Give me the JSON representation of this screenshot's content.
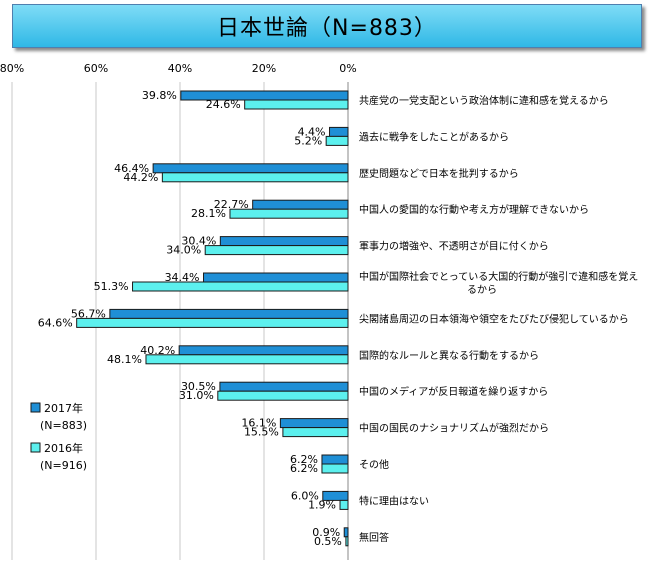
{
  "chart_data": {
    "type": "bar",
    "title": "日本世論（N=883）",
    "orientation": "horizontal",
    "direction": "right-to-left",
    "xlim": [
      0,
      80
    ],
    "ticks": [
      "80%",
      "60%",
      "40%",
      "20%",
      "0%"
    ],
    "categories": [
      [
        "共産党の一党支配という政治体制に違和感を覚えるから"
      ],
      [
        "過去に戦争をしたことがあるから"
      ],
      [
        "歴史問題などで日本を批判するから"
      ],
      [
        "中国人の愛国的な行動や考え方が理解できないから"
      ],
      [
        "軍事力の増強や、不透明さが目に付くから"
      ],
      [
        "中国が国際社会でとっている大国的行動が強引で違和感を覚え",
        "るから"
      ],
      [
        "尖閣諸島周辺の日本領海や領空をたびたび侵犯しているから"
      ],
      [
        "国際的なルールと異なる行動をするから"
      ],
      [
        "中国のメディアが反日報道を繰り返すから"
      ],
      [
        "中国の国民のナショナリズムが強烈だから"
      ],
      [
        "その他"
      ],
      [
        "特に理由はない"
      ],
      [
        "無回答"
      ]
    ],
    "series": [
      {
        "name": "2017年 (N=883)",
        "legend_lines": [
          "2017年",
          "(N=883)"
        ],
        "color": "#1f8fd6",
        "values": [
          39.8,
          4.4,
          46.4,
          22.7,
          30.4,
          34.4,
          56.7,
          40.2,
          30.5,
          16.1,
          6.2,
          6.0,
          0.9
        ],
        "labels": [
          "39.8%",
          "4.4%",
          "46.4%",
          "22.7%",
          "30.4%",
          "34.4%",
          "56.7%",
          "40.2%",
          "30.5%",
          "16.1%",
          "6.2%",
          "6.0%",
          "0.9%"
        ]
      },
      {
        "name": "2016年 (N=916)",
        "legend_lines": [
          "2016年",
          "(N=916)"
        ],
        "color": "#5cf0ee",
        "values": [
          24.6,
          5.2,
          44.2,
          28.1,
          34.0,
          51.3,
          64.6,
          48.1,
          31.0,
          15.5,
          6.2,
          1.9,
          0.5
        ],
        "labels": [
          "24.6%",
          "5.2%",
          "44.2%",
          "28.1%",
          "34.0%",
          "51.3%",
          "64.6%",
          "48.1%",
          "31.0%",
          "15.5%",
          "6.2%",
          "1.9%",
          "0.5%"
        ]
      }
    ],
    "grid": true,
    "legend": "bottom-left"
  }
}
